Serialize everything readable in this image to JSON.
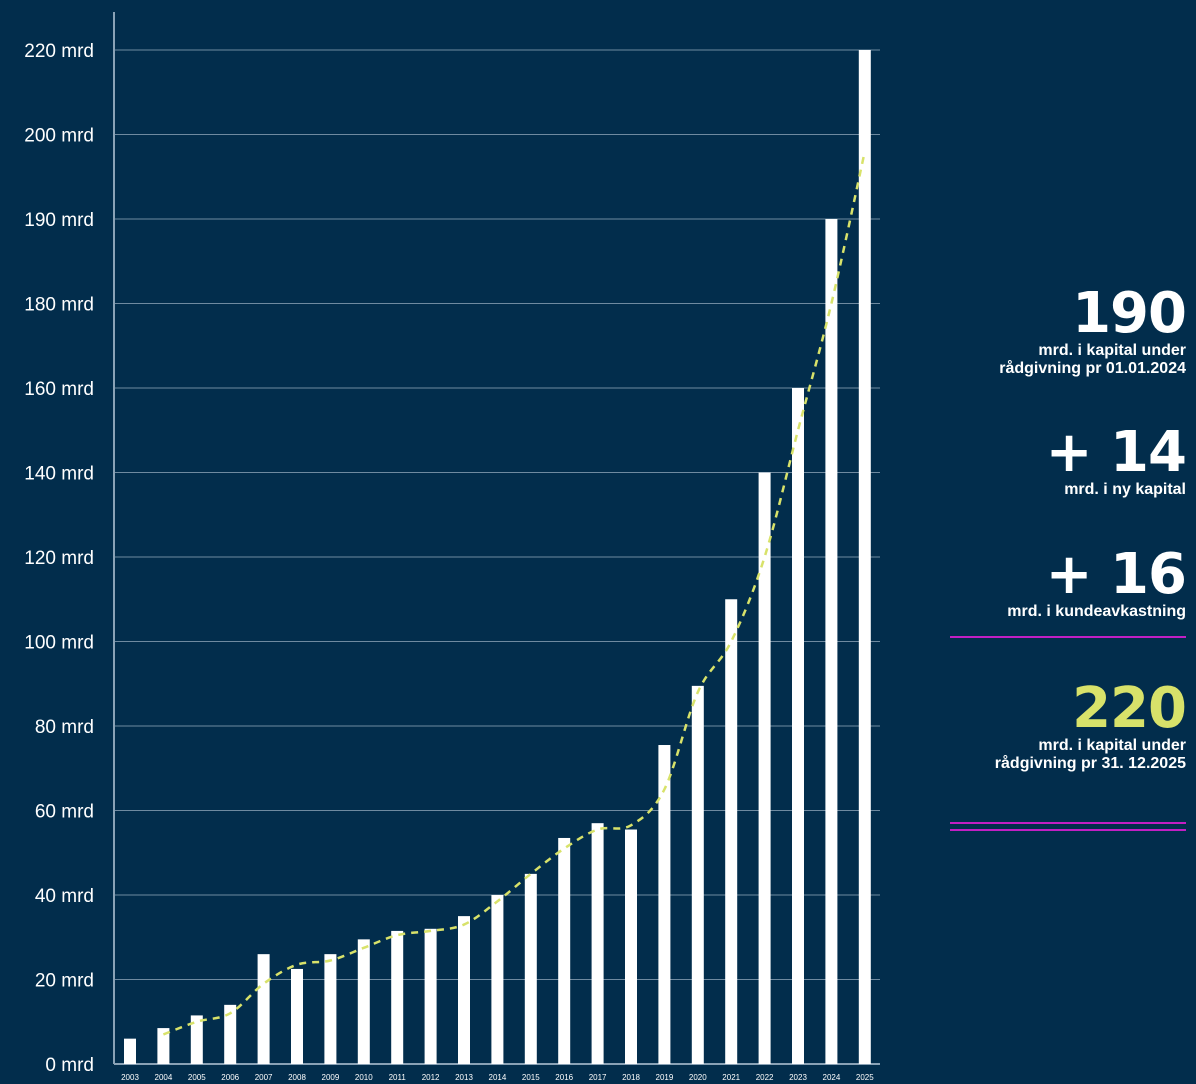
{
  "colors": {
    "background": "#022d4c",
    "bars": "#ffffff",
    "trend": "#d8e26a",
    "gridline": "#6f8aa0",
    "divider": "#c21fc4",
    "accent": "#d8e26a"
  },
  "chart_data": {
    "type": "bar",
    "title": "",
    "xlabel": "",
    "ylabel": "",
    "categories": [
      "2003",
      "2004",
      "2005",
      "2006",
      "2007",
      "2008",
      "2009",
      "2010",
      "2011",
      "2012",
      "2013",
      "2014",
      "2015",
      "2016",
      "2017",
      "2018",
      "2019",
      "2020",
      "2021",
      "2022",
      "2023",
      "2024",
      "2025"
    ],
    "series": [
      {
        "values": [
          6,
          8.5,
          11.5,
          14,
          26,
          22.5,
          26,
          29.5,
          31.5,
          32,
          35,
          40,
          45,
          53.5,
          57,
          55.5,
          75.5,
          89.5,
          110,
          140,
          160,
          190,
          220
        ]
      }
    ],
    "trend": {
      "style": "dashed",
      "x": [
        "2004",
        "2005",
        "2006",
        "2007",
        "2008",
        "2009",
        "2010",
        "2011",
        "2012",
        "2013",
        "2014",
        "2015",
        "2016",
        "2017",
        "2018",
        "2019",
        "2020",
        "2021",
        "2022",
        "2023",
        "2024",
        "2025"
      ],
      "values": [
        7,
        10,
        12,
        19,
        23.5,
        24.5,
        27.5,
        30.5,
        31.5,
        33,
        38.5,
        45,
        51,
        55.5,
        56.5,
        65,
        88,
        100,
        120,
        150,
        180,
        198
      ]
    },
    "y_ticks": [
      {
        "value": 0,
        "label": "0 mrd"
      },
      {
        "value": 20,
        "label": "20 mrd"
      },
      {
        "value": 40,
        "label": "40 mrd"
      },
      {
        "value": 60,
        "label": "60 mrd"
      },
      {
        "value": 80,
        "label": "80 mrd"
      },
      {
        "value": 100,
        "label": "100 mrd"
      },
      {
        "value": 120,
        "label": "120 mrd"
      },
      {
        "value": 140,
        "label": "140 mrd"
      },
      {
        "value": 160,
        "label": "160 mrd"
      },
      {
        "value": 180,
        "label": "180 mrd"
      },
      {
        "value": 190,
        "label": "190 mrd"
      },
      {
        "value": 200,
        "label": "200 mrd"
      },
      {
        "value": 220,
        "label": "220 mrd"
      }
    ],
    "ylim": [
      0,
      220
    ],
    "grid": true,
    "legend": "none"
  },
  "stats": {
    "start": {
      "value": "190",
      "caption_line1": "mrd. i kapital under",
      "caption_line2": "rådgivning pr 01.01.2024"
    },
    "new_capital": {
      "value": "+ 14",
      "caption": "mrd. i ny kapital"
    },
    "returns": {
      "value": "+ 16",
      "caption": "mrd. i kundeavkastning"
    },
    "total": {
      "value": "220",
      "caption_line1": "mrd. i kapital under",
      "caption_line2": "rådgivning pr 31. 12.2025"
    }
  }
}
